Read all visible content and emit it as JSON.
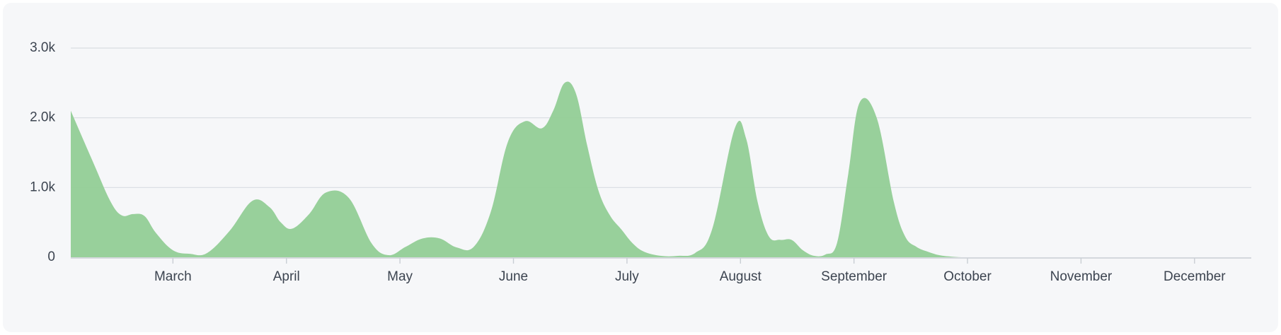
{
  "chart_data": {
    "type": "area",
    "title": "",
    "xlabel": "",
    "ylabel": "",
    "ylim": [
      0,
      3000
    ],
    "grid": true,
    "color": "#8fcc93",
    "y_ticks": [
      {
        "value": 0,
        "label": "0"
      },
      {
        "value": 1000,
        "label": "1.0k"
      },
      {
        "value": 2000,
        "label": "2.0k"
      },
      {
        "value": 3000,
        "label": "3.0k"
      }
    ],
    "x_ticks": [
      {
        "month": 3,
        "label": "March"
      },
      {
        "month": 4,
        "label": "April"
      },
      {
        "month": 5,
        "label": "May"
      },
      {
        "month": 6,
        "label": "June"
      },
      {
        "month": 7,
        "label": "July"
      },
      {
        "month": 8,
        "label": "August"
      },
      {
        "month": 9,
        "label": "September"
      },
      {
        "month": 10,
        "label": "October"
      },
      {
        "month": 11,
        "label": "November"
      },
      {
        "month": 12,
        "label": "December"
      }
    ],
    "x_range": [
      2.1,
      12.5
    ],
    "series": [
      {
        "x": [
          2.1,
          2.3,
          2.45,
          2.55,
          2.65,
          2.75,
          2.85,
          3.0,
          3.15,
          3.3,
          3.5,
          3.7,
          3.85,
          3.95,
          4.05,
          4.2,
          4.35,
          4.55,
          4.75,
          4.9,
          5.05,
          5.2,
          5.35,
          5.5,
          5.65,
          5.8,
          5.95,
          6.1,
          6.25,
          6.35,
          6.45,
          6.55,
          6.65,
          6.75,
          6.85,
          6.95,
          7.05,
          7.15,
          7.3,
          7.45,
          7.6,
          7.75,
          7.95,
          8.05,
          8.15,
          8.25,
          8.35,
          8.45,
          8.55,
          8.65,
          8.75,
          8.85,
          8.95,
          9.05,
          9.2,
          9.35,
          9.45,
          9.55,
          9.65,
          9.75,
          9.85,
          9.95,
          10.05,
          10.15,
          10.3,
          10.45,
          10.6,
          10.75,
          11.0,
          11.5,
          12.0,
          12.5
        ],
        "y": [
          2100,
          1350,
          800,
          600,
          620,
          590,
          350,
          100,
          50,
          60,
          380,
          810,
          720,
          500,
          410,
          620,
          930,
          850,
          200,
          30,
          150,
          270,
          270,
          140,
          150,
          650,
          1650,
          1950,
          1850,
          2100,
          2500,
          2350,
          1600,
          950,
          600,
          400,
          200,
          80,
          20,
          20,
          60,
          400,
          1850,
          1700,
          800,
          300,
          250,
          250,
          100,
          20,
          40,
          200,
          1200,
          2220,
          2000,
          800,
          300,
          150,
          80,
          30,
          10,
          0,
          0,
          0,
          0,
          0,
          0,
          0,
          0,
          0,
          0,
          0
        ]
      }
    ]
  }
}
